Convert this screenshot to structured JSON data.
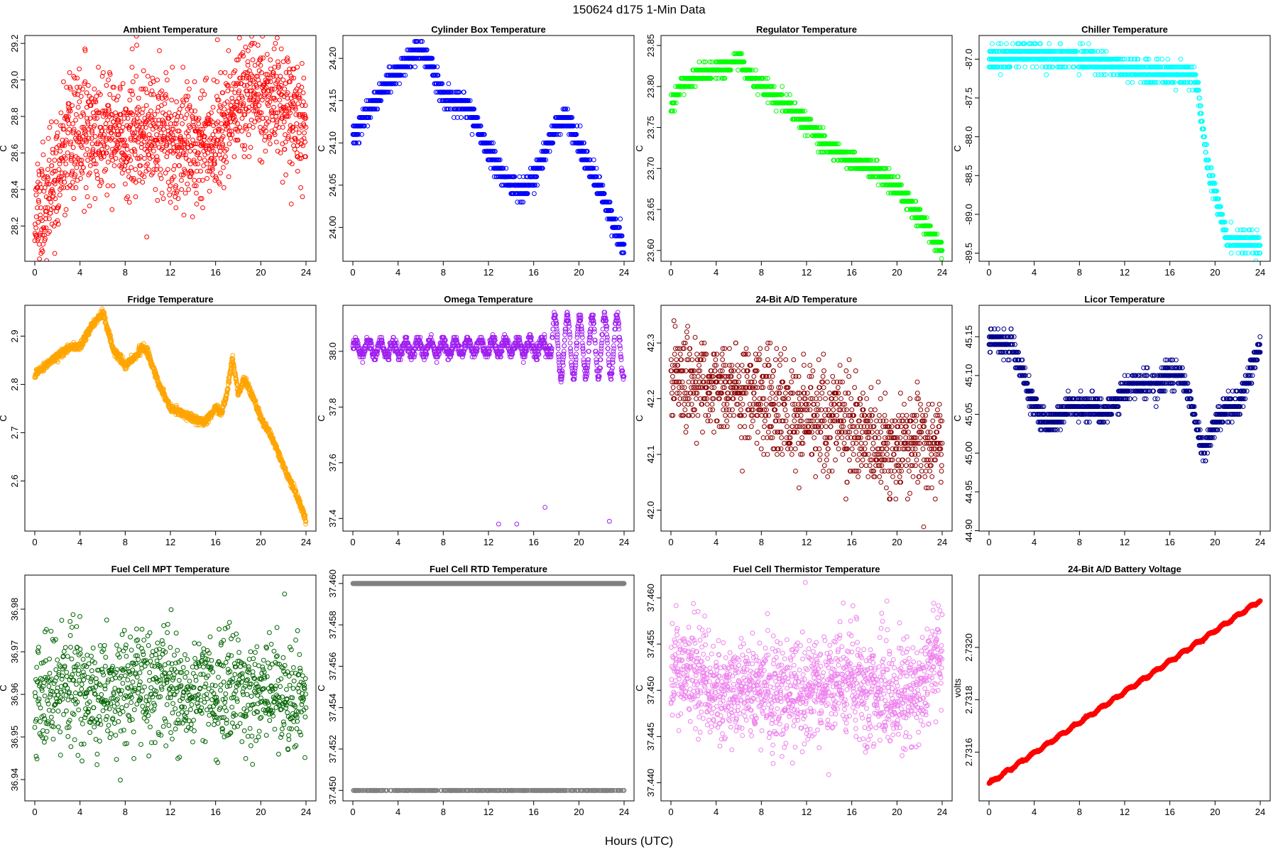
{
  "figure": {
    "title": "150624    d175    1-Min Data",
    "xlabel": "Hours (UTC)"
  },
  "chart_data": [
    {
      "id": "ambient",
      "type": "scatter",
      "title": "Ambient Temperature",
      "ylabel": "C",
      "color": "#ff0000",
      "xlim": [
        0,
        24
      ],
      "ylim": [
        28.03,
        29.22
      ],
      "xticks": [
        "0",
        "4",
        "8",
        "12",
        "16",
        "20",
        "24"
      ],
      "yticks": [
        "28.2",
        "28.4",
        "28.6",
        "28.8",
        "29.0",
        "29.2"
      ],
      "trend": [
        [
          0,
          28.3
        ],
        [
          0.5,
          28.28
        ],
        [
          1,
          28.33
        ],
        [
          1.5,
          28.4
        ],
        [
          2,
          28.45
        ],
        [
          2.5,
          28.56
        ],
        [
          3,
          28.64
        ],
        [
          4,
          28.7
        ],
        [
          5,
          28.72
        ],
        [
          6,
          28.7
        ],
        [
          8,
          28.68
        ],
        [
          10,
          28.7
        ],
        [
          12,
          28.66
        ],
        [
          14,
          28.67
        ],
        [
          16,
          28.7
        ],
        [
          17,
          28.77
        ],
        [
          18,
          28.9
        ],
        [
          19,
          28.95
        ],
        [
          20,
          28.92
        ],
        [
          21,
          28.9
        ],
        [
          22,
          28.85
        ],
        [
          23,
          28.8
        ],
        [
          24,
          28.78
        ]
      ],
      "noise": 0.16,
      "noise_type": "gauss",
      "quant": 0.01,
      "n": 1440,
      "seed": 11
    },
    {
      "id": "cylinder",
      "type": "scatter",
      "title": "Cylinder Box Temperature",
      "ylabel": "C",
      "color": "#0000ff",
      "xlim": [
        0,
        24
      ],
      "ylim": [
        23.965,
        24.222
      ],
      "xticks": [
        "0",
        "4",
        "8",
        "12",
        "16",
        "20",
        "24"
      ],
      "yticks": [
        "24.00",
        "24.05",
        "24.10",
        "24.15",
        "24.20"
      ],
      "trend": [
        [
          0,
          24.105
        ],
        [
          1,
          24.13
        ],
        [
          2,
          24.15
        ],
        [
          3,
          24.17
        ],
        [
          4,
          24.185
        ],
        [
          5,
          24.2
        ],
        [
          6,
          24.21
        ],
        [
          7,
          24.19
        ],
        [
          8,
          24.155
        ],
        [
          9,
          24.15
        ],
        [
          10,
          24.145
        ],
        [
          11,
          24.12
        ],
        [
          12,
          24.09
        ],
        [
          13,
          24.065
        ],
        [
          14,
          24.05
        ],
        [
          15,
          24.045
        ],
        [
          16,
          24.06
        ],
        [
          17,
          24.09
        ],
        [
          18,
          24.12
        ],
        [
          19,
          24.13
        ],
        [
          20,
          24.1
        ],
        [
          21,
          24.07
        ],
        [
          22,
          24.04
        ],
        [
          23,
          24.01
        ],
        [
          24,
          23.975
        ]
      ],
      "noise": 0.006,
      "noise_type": "gauss",
      "quant": 0.01,
      "n": 1440,
      "seed": 12
    },
    {
      "id": "regulator",
      "type": "scatter",
      "title": "Regulator Temperature",
      "ylabel": "C",
      "color": "#00ff00",
      "xlim": [
        0,
        24
      ],
      "ylim": [
        23.592,
        23.857
      ],
      "xticks": [
        "0",
        "4",
        "8",
        "12",
        "16",
        "20",
        "24"
      ],
      "yticks": [
        "23.60",
        "23.65",
        "23.70",
        "23.75",
        "23.80",
        "23.85"
      ],
      "trend": [
        [
          0,
          23.775
        ],
        [
          0.5,
          23.79
        ],
        [
          1,
          23.8
        ],
        [
          2,
          23.81
        ],
        [
          3,
          23.815
        ],
        [
          4,
          23.82
        ],
        [
          5,
          23.825
        ],
        [
          6,
          23.835
        ],
        [
          7,
          23.81
        ],
        [
          8,
          23.8
        ],
        [
          10,
          23.78
        ],
        [
          12,
          23.755
        ],
        [
          14,
          23.725
        ],
        [
          16,
          23.71
        ],
        [
          18,
          23.7
        ],
        [
          19,
          23.69
        ],
        [
          20,
          23.675
        ],
        [
          21,
          23.66
        ],
        [
          22,
          23.64
        ],
        [
          23,
          23.62
        ],
        [
          24,
          23.6
        ]
      ],
      "noise": 0.005,
      "noise_type": "gauss",
      "quant": 0.01,
      "n": 1440,
      "seed": 13
    },
    {
      "id": "chiller",
      "type": "scatter",
      "title": "Chiller Temperature",
      "ylabel": "C",
      "color": "#00ffff",
      "xlim": [
        0,
        24
      ],
      "ylim": [
        -89.55,
        -86.75
      ],
      "xticks": [
        "0",
        "4",
        "8",
        "12",
        "16",
        "20",
        "24"
      ],
      "yticks": [
        "-89.5",
        "-89.0",
        "-88.5",
        "-88.0",
        "-87.5",
        "-87.0"
      ],
      "trend": [
        [
          0,
          -87.0
        ],
        [
          1,
          -87.0
        ],
        [
          2,
          -86.95
        ],
        [
          4,
          -86.93
        ],
        [
          6,
          -86.97
        ],
        [
          8,
          -87.0
        ],
        [
          10,
          -87.05
        ],
        [
          12,
          -87.12
        ],
        [
          14,
          -87.15
        ],
        [
          16,
          -87.17
        ],
        [
          18,
          -87.2
        ],
        [
          18.5,
          -87.4
        ],
        [
          19,
          -88.0
        ],
        [
          19.5,
          -88.5
        ],
        [
          20,
          -88.7
        ],
        [
          20.5,
          -89.0
        ],
        [
          21,
          -89.3
        ],
        [
          22,
          -89.35
        ],
        [
          23,
          -89.35
        ],
        [
          24,
          -89.4
        ]
      ],
      "noise": 0.07,
      "noise_type": "gauss",
      "quant": 0.1,
      "n": 1440,
      "seed": 14
    },
    {
      "id": "fridge",
      "type": "scatter",
      "title": "Fridge Temperature",
      "ylabel": "C",
      "color": "#ffa500",
      "xlim": [
        0,
        24
      ],
      "ylim": [
        2.505,
        2.955
      ],
      "xticks": [
        "0",
        "4",
        "8",
        "12",
        "16",
        "20",
        "24"
      ],
      "yticks": [
        "2.6",
        "2.7",
        "2.8",
        "2.9"
      ],
      "trend": [
        [
          0,
          2.82
        ],
        [
          1,
          2.84
        ],
        [
          2,
          2.86
        ],
        [
          3,
          2.875
        ],
        [
          4,
          2.88
        ],
        [
          5,
          2.92
        ],
        [
          6,
          2.95
        ],
        [
          6.5,
          2.91
        ],
        [
          7,
          2.87
        ],
        [
          8,
          2.84
        ],
        [
          9,
          2.86
        ],
        [
          9.5,
          2.88
        ],
        [
          10,
          2.865
        ],
        [
          11,
          2.8
        ],
        [
          12,
          2.75
        ],
        [
          13,
          2.74
        ],
        [
          14,
          2.73
        ],
        [
          15,
          2.72
        ],
        [
          16,
          2.75
        ],
        [
          16.5,
          2.74
        ],
        [
          17,
          2.78
        ],
        [
          17.5,
          2.855
        ],
        [
          18,
          2.78
        ],
        [
          18.5,
          2.81
        ],
        [
          19,
          2.79
        ],
        [
          20,
          2.73
        ],
        [
          21,
          2.69
        ],
        [
          22,
          2.63
        ],
        [
          23,
          2.58
        ],
        [
          24,
          2.52
        ]
      ],
      "noise": 0.004,
      "noise_type": "gauss",
      "quant": 0,
      "n": 1440,
      "seed": 15
    },
    {
      "id": "omega",
      "type": "scatter",
      "title": "Omega Temperature",
      "ylabel": "C",
      "color": "#a020f0",
      "xlim": [
        0,
        24
      ],
      "ylim": [
        37.37,
        38.15
      ],
      "xticks": [
        "0",
        "4",
        "8",
        "12",
        "16",
        "20",
        "24"
      ],
      "yticks": [
        "37.4",
        "37.6",
        "37.8",
        "38.0"
      ],
      "trend": [
        [
          0,
          38.01
        ],
        [
          24,
          38.02
        ]
      ],
      "osc": {
        "amp": 0.025,
        "period": 1.1,
        "amp2": 0.11,
        "start": 17.5
      },
      "noise": 0.01,
      "noise_type": "gauss",
      "quant": 0.01,
      "n": 1440,
      "seed": 16,
      "extra": [
        [
          12.9,
          37.38
        ],
        [
          14.5,
          37.38
        ],
        [
          17,
          37.44
        ],
        [
          22.7,
          37.39
        ]
      ]
    },
    {
      "id": "ad24temp",
      "type": "scatter",
      "title": "24-Bit A/D Temperature",
      "ylabel": "C",
      "color": "#8b0000",
      "xlim": [
        0,
        24
      ],
      "ylim": [
        41.97,
        42.36
      ],
      "xticks": [
        "0",
        "4",
        "8",
        "12",
        "16",
        "20",
        "24"
      ],
      "yticks": [
        "42.0",
        "42.1",
        "42.2",
        "42.3"
      ],
      "trend": [
        [
          0,
          42.24
        ],
        [
          4,
          42.22
        ],
        [
          8,
          42.2
        ],
        [
          12,
          42.17
        ],
        [
          16,
          42.15
        ],
        [
          18,
          42.12
        ],
        [
          20,
          42.11
        ],
        [
          24,
          42.13
        ]
      ],
      "noise": 0.045,
      "noise_type": "gauss",
      "quant": 0.01,
      "n": 1100,
      "seed": 17
    },
    {
      "id": "licor",
      "type": "scatter",
      "title": "Licor Temperature",
      "ylabel": "C",
      "color": "#00008b",
      "xlim": [
        0,
        24
      ],
      "ylim": [
        44.905,
        45.185
      ],
      "xticks": [
        "0",
        "4",
        "8",
        "12",
        "16",
        "20",
        "24"
      ],
      "yticks": [
        "44.90",
        "44.95",
        "45.00",
        "45.05",
        "45.10",
        "45.15"
      ],
      "trend": [
        [
          0,
          45.15
        ],
        [
          1,
          45.14
        ],
        [
          2,
          45.14
        ],
        [
          3,
          45.1
        ],
        [
          4,
          45.06
        ],
        [
          5,
          45.04
        ],
        [
          6,
          45.04
        ],
        [
          7,
          45.06
        ],
        [
          8,
          45.06
        ],
        [
          9,
          45.06
        ],
        [
          10,
          45.05
        ],
        [
          11,
          45.06
        ],
        [
          12,
          45.08
        ],
        [
          13,
          45.09
        ],
        [
          14,
          45.09
        ],
        [
          15,
          45.09
        ],
        [
          16,
          45.1
        ],
        [
          17,
          45.1
        ],
        [
          18,
          45.06
        ],
        [
          19,
          45.0
        ],
        [
          20,
          45.04
        ],
        [
          21,
          45.06
        ],
        [
          22,
          45.06
        ],
        [
          23,
          45.1
        ],
        [
          24,
          45.14
        ]
      ],
      "noise": 0.008,
      "noise_type": "gauss",
      "quant": 0.01,
      "n": 1300,
      "seed": 18
    },
    {
      "id": "fcmpt",
      "type": "scatter",
      "title": "Fuel Cell MPT Temperature",
      "ylabel": "C",
      "color": "#006400",
      "xlim": [
        0,
        24
      ],
      "ylim": [
        36.936,
        36.987
      ],
      "xticks": [
        "0",
        "4",
        "8",
        "12",
        "16",
        "20",
        "24"
      ],
      "yticks": [
        "36.94",
        "36.95",
        "36.96",
        "36.97",
        "36.98"
      ],
      "trend": [
        [
          0,
          36.96
        ],
        [
          12,
          36.962
        ],
        [
          24,
          36.96
        ]
      ],
      "noise": 0.007,
      "noise_type": "gauss",
      "quant": 0,
      "n": 1000,
      "seed": 19
    },
    {
      "id": "fcrtd",
      "type": "scatter",
      "title": "Fuel Cell RTD Temperature",
      "ylabel": "C",
      "color": "#808080",
      "xlim": [
        0,
        24
      ],
      "ylim": [
        37.4497,
        37.4602
      ],
      "xticks": [
        "0",
        "4",
        "8",
        "12",
        "16",
        "20",
        "24"
      ],
      "yticks": [
        "37.450",
        "37.452",
        "37.454",
        "37.456",
        "37.458",
        "37.460"
      ],
      "levels": [
        37.46,
        37.45
      ],
      "n": 1440,
      "seed": 20
    },
    {
      "id": "fcthermistor",
      "type": "scatter",
      "title": "Fuel Cell Thermistor Temperature",
      "ylabel": "C",
      "color": "#ee82ee",
      "xlim": [
        0,
        24
      ],
      "ylim": [
        37.4385,
        37.462
      ],
      "xticks": [
        "0",
        "4",
        "8",
        "12",
        "16",
        "20",
        "24"
      ],
      "yticks": [
        "37.440",
        "37.445",
        "37.450",
        "37.455",
        "37.460"
      ],
      "trend": [
        [
          0,
          37.452
        ],
        [
          2,
          37.452
        ],
        [
          4,
          37.45
        ],
        [
          8,
          37.45
        ],
        [
          12,
          37.45
        ],
        [
          16,
          37.451
        ],
        [
          18,
          37.45
        ],
        [
          20,
          37.449
        ],
        [
          22,
          37.45
        ],
        [
          24,
          37.455
        ]
      ],
      "noise": 0.0028,
      "noise_type": "gauss",
      "quant": 0,
      "n": 1440,
      "seed": 21
    },
    {
      "id": "battery",
      "type": "scatter",
      "title": "24-Bit A/D Battery Voltage",
      "ylabel": "volts",
      "color": "#ff0000",
      "xlim": [
        0,
        24
      ],
      "ylim": [
        2.73143,
        2.73226
      ],
      "xticks": [
        "0",
        "4",
        "8",
        "12",
        "16",
        "20",
        "24"
      ],
      "yticks": [
        "2.7316",
        "2.7318",
        "2.7320"
      ],
      "trend": [
        [
          0,
          2.73148
        ],
        [
          24,
          2.73218
        ]
      ],
      "osc": {
        "amp": 4.5e-06,
        "period": 1.2
      },
      "noise": 1.5e-06,
      "noise_type": "gauss",
      "quant": 0,
      "n": 1440,
      "seed": 22
    }
  ]
}
